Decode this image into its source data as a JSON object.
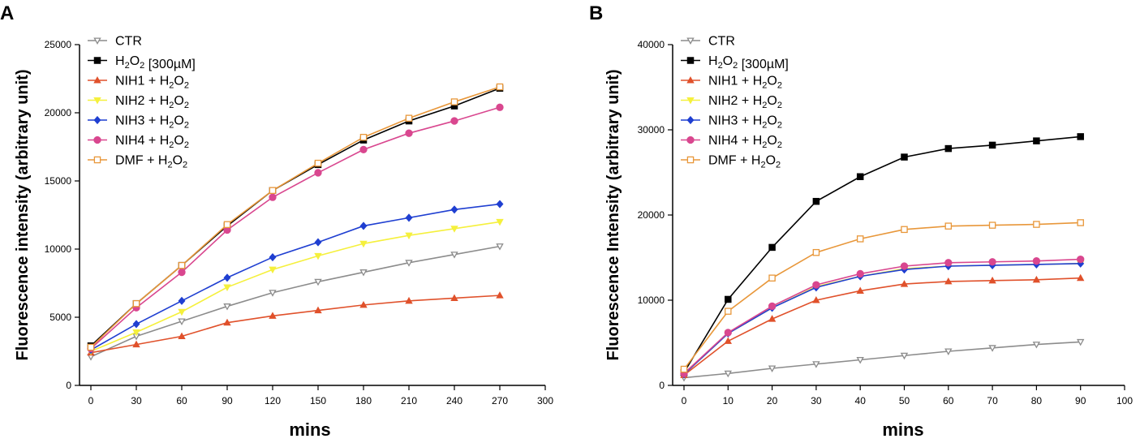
{
  "chart_data": [
    {
      "panel": "A",
      "type": "line",
      "xlabel": "mins",
      "ylabel": "Fluorescence intensity (arbitrary unit)",
      "xlim": [
        0,
        300
      ],
      "ylim": [
        0,
        25000
      ],
      "xticks": [
        0,
        30,
        60,
        90,
        120,
        150,
        180,
        210,
        240,
        270,
        300
      ],
      "yticks": [
        0,
        5000,
        10000,
        15000,
        20000,
        25000
      ],
      "x": [
        0,
        30,
        60,
        90,
        120,
        150,
        180,
        210,
        240,
        270
      ],
      "series": [
        {
          "key": "ctr",
          "name": "CTR",
          "color": "#8c8c8c",
          "marker": "triangle-down-open",
          "values": [
            2100,
            3600,
            4700,
            5800,
            6800,
            7600,
            8300,
            9000,
            9600,
            10200
          ]
        },
        {
          "key": "h2o2",
          "name": "H2O2 [300µM]",
          "color": "#000000",
          "marker": "square",
          "values": [
            2900,
            6000,
            8800,
            11700,
            14300,
            16200,
            18000,
            19400,
            20500,
            21800
          ]
        },
        {
          "key": "nih1",
          "name": "NIH1 + H2O2",
          "color": "#e0512b",
          "marker": "triangle-up",
          "values": [
            2400,
            3000,
            3600,
            4600,
            5100,
            5500,
            5900,
            6200,
            6400,
            6600
          ]
        },
        {
          "key": "nih2",
          "name": "NIH2 + H2O2",
          "color": "#f5f03c",
          "marker": "triangle-down",
          "values": [
            2500,
            3900,
            5400,
            7200,
            8500,
            9500,
            10400,
            11000,
            11500,
            12000
          ]
        },
        {
          "key": "nih3",
          "name": "NIH3 + H2O2",
          "color": "#1f3fd1",
          "marker": "diamond",
          "values": [
            2600,
            4500,
            6200,
            7900,
            9400,
            10500,
            11700,
            12300,
            12900,
            13300
          ]
        },
        {
          "key": "nih4",
          "name": "NIH4 + H2O2",
          "color": "#d9478f",
          "marker": "circle",
          "values": [
            2700,
            5700,
            8300,
            11400,
            13800,
            15600,
            17300,
            18500,
            19400,
            20400
          ]
        },
        {
          "key": "dmf",
          "name": "DMF + H2O2",
          "color": "#e8973a",
          "marker": "square-open",
          "values": [
            2800,
            6000,
            8800,
            11800,
            14300,
            16300,
            18200,
            19600,
            20800,
            21900
          ]
        }
      ]
    },
    {
      "panel": "B",
      "type": "line",
      "xlabel": "mins",
      "ylabel": "Fluorescence Intensity (arbitrary unit)",
      "xlim": [
        0,
        100
      ],
      "ylim": [
        0,
        40000
      ],
      "xticks": [
        0,
        10,
        20,
        30,
        40,
        50,
        60,
        70,
        80,
        90,
        100
      ],
      "yticks": [
        0,
        10000,
        20000,
        30000,
        40000
      ],
      "x": [
        0,
        10,
        20,
        30,
        40,
        50,
        60,
        70,
        80,
        90
      ],
      "series": [
        {
          "key": "ctr",
          "name": "CTR",
          "color": "#8c8c8c",
          "marker": "triangle-down-open",
          "values": [
            900,
            1400,
            2000,
            2500,
            3000,
            3500,
            4000,
            4400,
            4800,
            5100
          ]
        },
        {
          "key": "h2o2",
          "name": "H2O2 [300µM]",
          "color": "#000000",
          "marker": "square",
          "values": [
            1500,
            10100,
            16200,
            21600,
            24500,
            26800,
            27800,
            28200,
            28700,
            29200
          ]
        },
        {
          "key": "nih1",
          "name": "NIH1 + H2O2",
          "color": "#e0512b",
          "marker": "triangle-up",
          "values": [
            1200,
            5200,
            7800,
            10000,
            11100,
            11900,
            12200,
            12300,
            12400,
            12600
          ]
        },
        {
          "key": "nih2",
          "name": "NIH2 + H2O2",
          "color": "#f5f03c",
          "marker": "triangle-down",
          "values": [
            1300,
            6100,
            9100,
            11600,
            12800,
            13700,
            14000,
            14100,
            14200,
            14300
          ]
        },
        {
          "key": "nih3",
          "name": "NIH3 + H2O2",
          "color": "#1f3fd1",
          "marker": "diamond",
          "values": [
            1300,
            6100,
            9100,
            11500,
            12800,
            13600,
            14000,
            14100,
            14200,
            14300
          ]
        },
        {
          "key": "nih4",
          "name": "NIH4 + H2O2",
          "color": "#d9478f",
          "marker": "circle",
          "values": [
            1400,
            6200,
            9300,
            11800,
            13100,
            14000,
            14400,
            14500,
            14600,
            14800
          ]
        },
        {
          "key": "dmf",
          "name": "DMF + H2O2",
          "color": "#e8973a",
          "marker": "square-open",
          "values": [
            1900,
            8700,
            12600,
            15600,
            17200,
            18300,
            18700,
            18800,
            18900,
            19100
          ]
        }
      ]
    }
  ]
}
